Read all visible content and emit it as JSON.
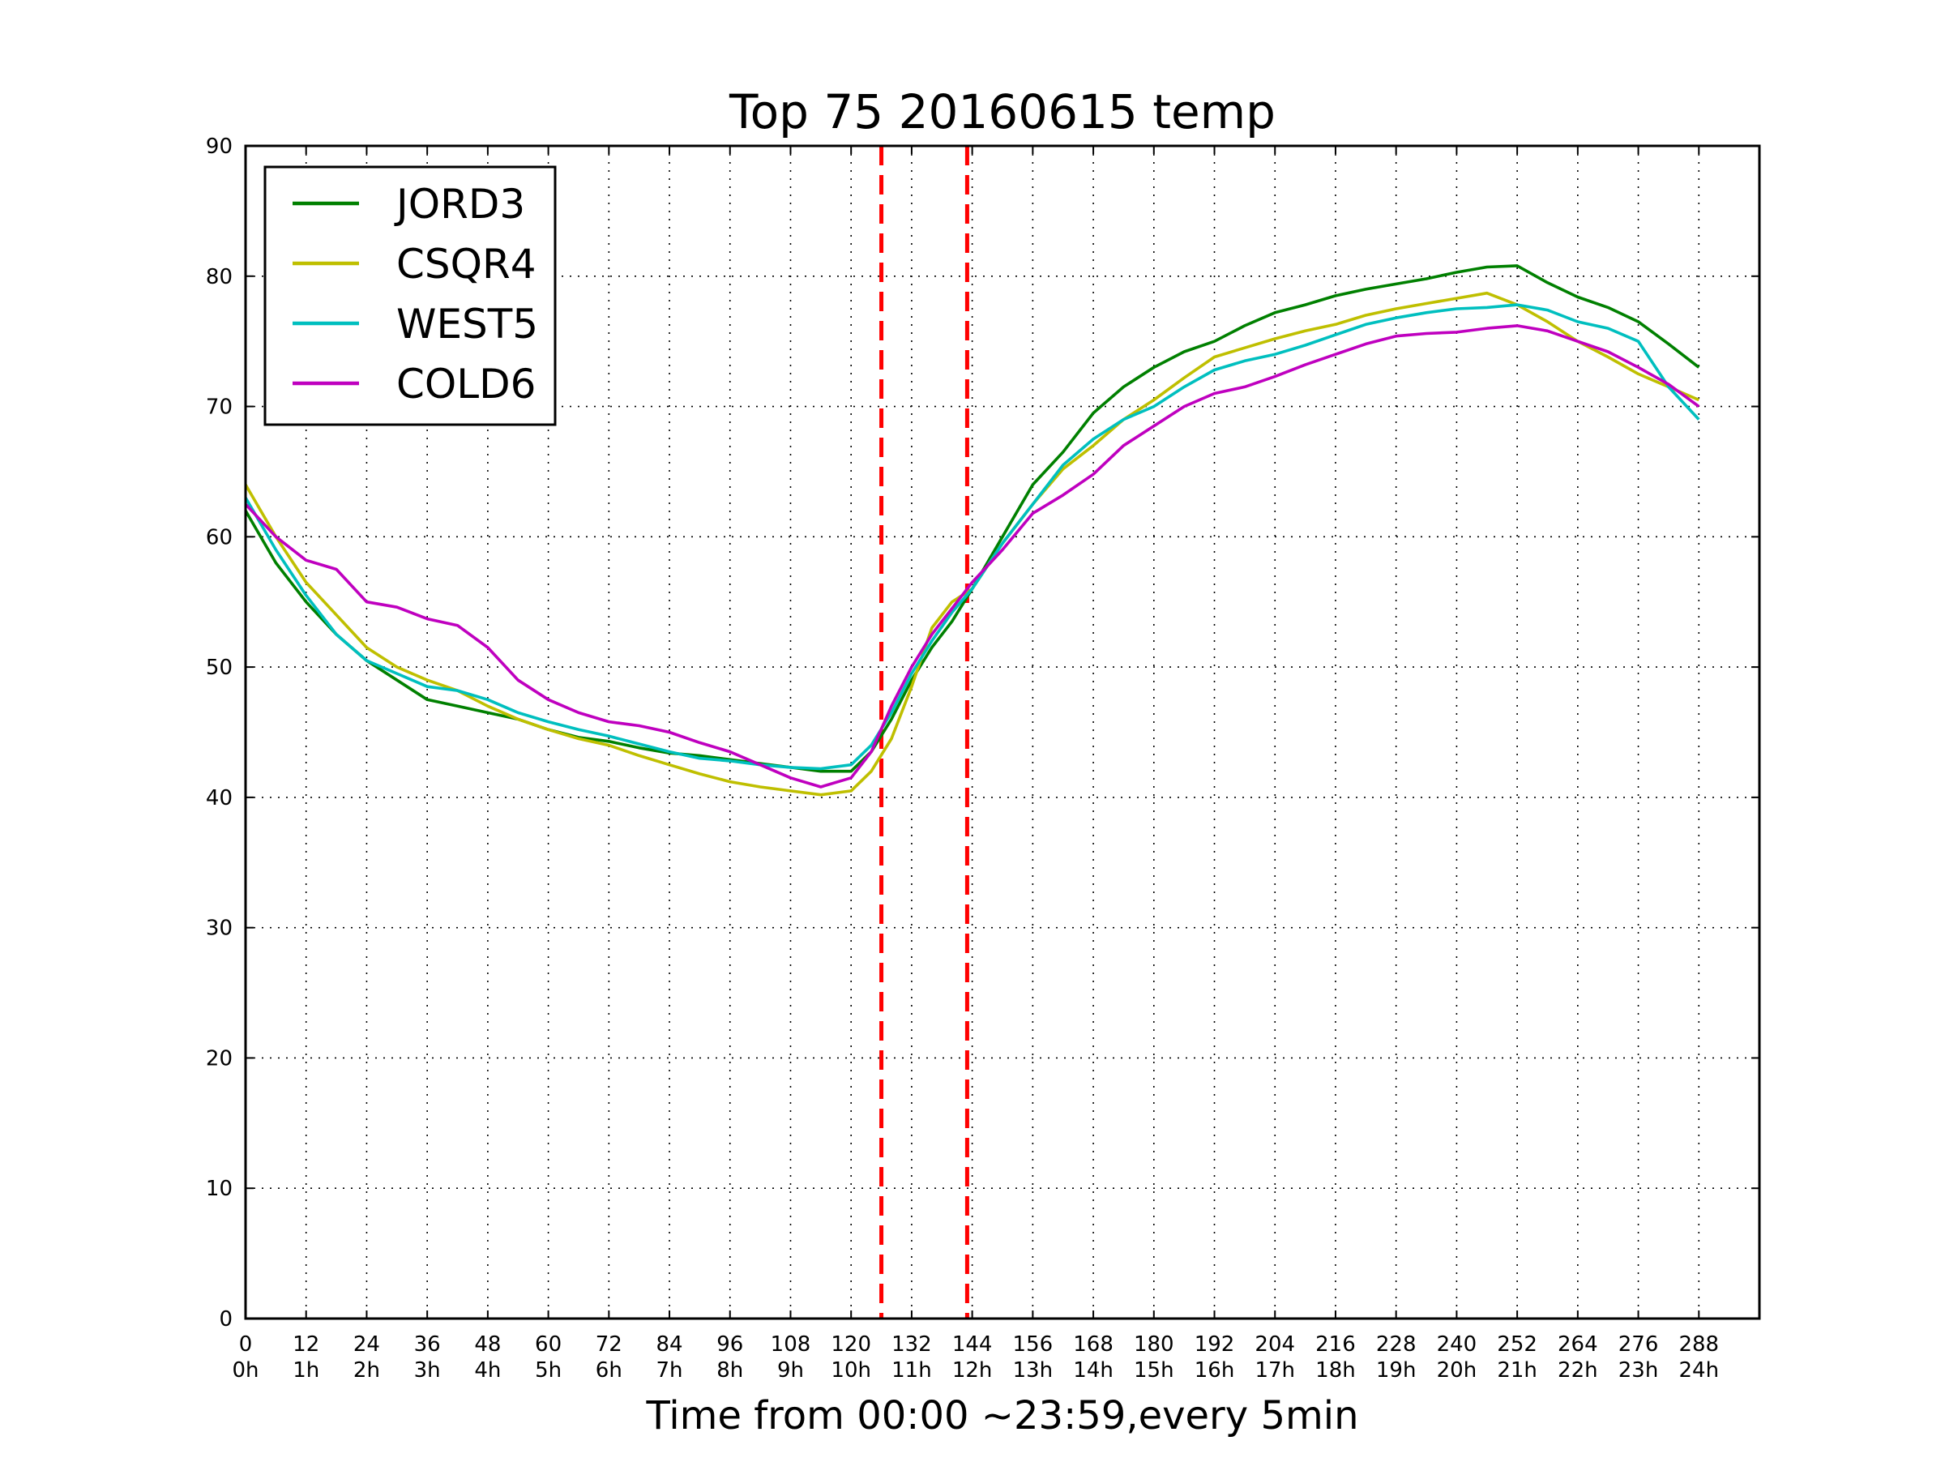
{
  "chart_data": {
    "type": "line",
    "title": "Top 75 20160615 temp",
    "xlabel": "Time from 00:00 ~23:59,every 5min",
    "ylabel": "",
    "xlim": [
      0,
      300
    ],
    "ylim": [
      0,
      90
    ],
    "grid": true,
    "legend_position": "top-left",
    "x_ticks": [
      0,
      12,
      24,
      36,
      48,
      60,
      72,
      84,
      96,
      108,
      120,
      132,
      144,
      156,
      168,
      180,
      192,
      204,
      216,
      228,
      240,
      252,
      264,
      276,
      288
    ],
    "x_tick_labels": [
      "0",
      "12",
      "24",
      "36",
      "48",
      "60",
      "72",
      "84",
      "96",
      "108",
      "120",
      "132",
      "144",
      "156",
      "168",
      "180",
      "192",
      "204",
      "216",
      "228",
      "240",
      "252",
      "264",
      "276",
      "288"
    ],
    "x_tick_sublabels": [
      "0h",
      "1h",
      "2h",
      "3h",
      "4h",
      "5h",
      "6h",
      "7h",
      "8h",
      "9h",
      "10h",
      "11h",
      "12h",
      "13h",
      "14h",
      "15h",
      "16h",
      "17h",
      "18h",
      "19h",
      "20h",
      "21h",
      "22h",
      "23h",
      "24h"
    ],
    "y_ticks": [
      0,
      10,
      20,
      30,
      40,
      50,
      60,
      70,
      80,
      90
    ],
    "y_tick_labels": [
      "0",
      "10",
      "20",
      "30",
      "40",
      "50",
      "60",
      "70",
      "80",
      "90"
    ],
    "vertical_markers": [
      {
        "x": 126,
        "color": "#ff0000",
        "style": "dashed"
      },
      {
        "x": 143,
        "color": "#ff0000",
        "style": "dashed"
      }
    ],
    "series": [
      {
        "name": "JORD3",
        "color": "#008000",
        "x": [
          0,
          6,
          12,
          18,
          24,
          30,
          36,
          42,
          48,
          54,
          60,
          66,
          72,
          78,
          84,
          90,
          96,
          102,
          108,
          114,
          120,
          124,
          128,
          132,
          136,
          140,
          144,
          150,
          156,
          162,
          168,
          174,
          180,
          186,
          192,
          198,
          204,
          210,
          216,
          222,
          228,
          234,
          240,
          246,
          252,
          258,
          264,
          270,
          276,
          282,
          288
        ],
        "y": [
          62,
          58,
          55,
          52.5,
          50.5,
          49,
          47.5,
          47,
          46.5,
          46,
          45.2,
          44.6,
          44.3,
          43.8,
          43.4,
          43.2,
          42.9,
          42.6,
          42.3,
          42,
          42,
          43.5,
          46,
          49,
          51.5,
          53.5,
          56,
          60,
          64,
          66.5,
          69.5,
          71.5,
          73,
          74.2,
          75,
          76.2,
          77.2,
          77.8,
          78.5,
          79,
          79.4,
          79.8,
          80.3,
          80.7,
          80.8,
          79.5,
          78.4,
          77.6,
          76.5,
          74.8,
          73
        ]
      },
      {
        "name": "CSQR4",
        "color": "#bfbf00",
        "x": [
          0,
          6,
          12,
          18,
          24,
          30,
          36,
          42,
          48,
          54,
          60,
          66,
          72,
          78,
          84,
          90,
          96,
          102,
          108,
          114,
          120,
          124,
          128,
          132,
          136,
          140,
          144,
          150,
          156,
          162,
          168,
          174,
          180,
          186,
          192,
          198,
          204,
          210,
          216,
          222,
          228,
          234,
          240,
          246,
          252,
          258,
          264,
          270,
          276,
          282,
          288
        ],
        "y": [
          64,
          60,
          56.5,
          54,
          51.5,
          50,
          49,
          48.2,
          47,
          46,
          45.2,
          44.5,
          44,
          43.2,
          42.5,
          41.8,
          41.2,
          40.8,
          40.5,
          40.2,
          40.5,
          42,
          44.5,
          48.5,
          53,
          55,
          56,
          59.5,
          62.5,
          65.2,
          67,
          69,
          70.5,
          72.2,
          73.8,
          74.5,
          75.2,
          75.8,
          76.3,
          77,
          77.5,
          77.9,
          78.3,
          78.7,
          77.8,
          76.5,
          75,
          73.8,
          72.5,
          71.5,
          70.5
        ]
      },
      {
        "name": "WEST5",
        "color": "#00bfbf",
        "x": [
          0,
          6,
          12,
          18,
          24,
          30,
          36,
          42,
          48,
          54,
          60,
          66,
          72,
          78,
          84,
          90,
          96,
          102,
          108,
          114,
          120,
          124,
          128,
          132,
          136,
          140,
          144,
          150,
          156,
          162,
          168,
          174,
          180,
          186,
          192,
          198,
          204,
          210,
          216,
          222,
          228,
          234,
          240,
          246,
          252,
          258,
          264,
          270,
          276,
          282,
          288
        ],
        "y": [
          63,
          59,
          55.5,
          52.5,
          50.5,
          49.5,
          48.5,
          48.2,
          47.5,
          46.5,
          45.8,
          45.2,
          44.7,
          44.1,
          43.5,
          43,
          42.8,
          42.5,
          42.3,
          42.2,
          42.5,
          44,
          46.5,
          49.5,
          52,
          54.2,
          56,
          59.5,
          62.5,
          65.5,
          67.5,
          69,
          70,
          71.5,
          72.8,
          73.5,
          74,
          74.7,
          75.5,
          76.3,
          76.8,
          77.2,
          77.5,
          77.6,
          77.8,
          77.4,
          76.5,
          76,
          75,
          71.5,
          69
        ]
      },
      {
        "name": "COLD6",
        "color": "#bf00bf",
        "x": [
          0,
          6,
          12,
          18,
          24,
          30,
          36,
          42,
          48,
          54,
          60,
          66,
          72,
          78,
          84,
          90,
          96,
          102,
          108,
          114,
          120,
          124,
          128,
          132,
          136,
          140,
          144,
          150,
          156,
          162,
          168,
          174,
          180,
          186,
          192,
          198,
          204,
          210,
          216,
          222,
          228,
          234,
          240,
          246,
          252,
          258,
          264,
          270,
          276,
          282,
          288
        ],
        "y": [
          62.5,
          60,
          58.2,
          57.5,
          55,
          54.6,
          53.7,
          53.2,
          51.5,
          49,
          47.5,
          46.5,
          45.8,
          45.5,
          45,
          44.2,
          43.5,
          42.5,
          41.5,
          40.8,
          41.5,
          43.5,
          47,
          50,
          52.5,
          54.5,
          56.5,
          59,
          61.8,
          63.2,
          64.8,
          67,
          68.5,
          70,
          71,
          71.5,
          72.3,
          73.2,
          74,
          74.8,
          75.4,
          75.6,
          75.7,
          76,
          76.2,
          75.8,
          75,
          74.2,
          73,
          71.7,
          70
        ]
      }
    ]
  }
}
